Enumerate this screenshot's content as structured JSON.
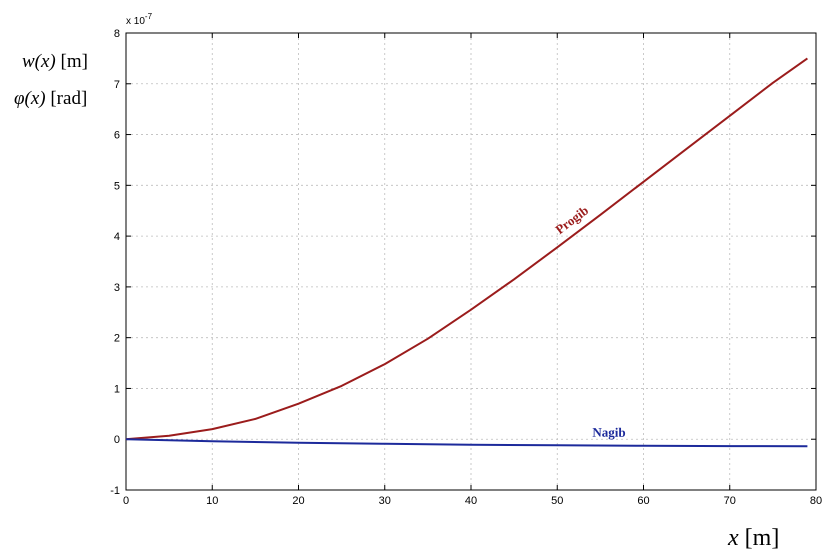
{
  "chart_data": {
    "type": "line",
    "title": "",
    "xlabel_var": "x",
    "xlabel_unit": "[m]",
    "ylabel_line1_var": "w(x)",
    "ylabel_line1_unit": "[m]",
    "ylabel_line2_var": "φ(x)",
    "ylabel_line2_unit": "[rad]",
    "y_multiplier": "x 10",
    "y_exponent": "-7",
    "xlim": [
      0,
      80
    ],
    "ylim": [
      -1,
      8
    ],
    "xticks": [
      0,
      10,
      20,
      30,
      40,
      50,
      60,
      70,
      80
    ],
    "yticks": [
      -1,
      0,
      1,
      2,
      3,
      4,
      5,
      6,
      7,
      8
    ],
    "grid": true,
    "series": [
      {
        "name": "Progib",
        "color": "#9b1c1c",
        "x": [
          0,
          5,
          10,
          15,
          20,
          25,
          30,
          35,
          40,
          45,
          50,
          55,
          60,
          65,
          70,
          75,
          79
        ],
        "y": [
          0,
          0.07,
          0.2,
          0.4,
          0.7,
          1.05,
          1.48,
          1.98,
          2.55,
          3.15,
          3.78,
          4.42,
          5.07,
          5.72,
          6.37,
          7.02,
          7.5
        ],
        "label_x": 52,
        "label_y": 4.25
      },
      {
        "name": "Nagib",
        "color": "#1c2a9b",
        "x": [
          0,
          5,
          10,
          20,
          30,
          40,
          50,
          60,
          70,
          79
        ],
        "y": [
          0,
          -0.02,
          -0.04,
          -0.07,
          -0.09,
          -0.11,
          -0.12,
          -0.13,
          -0.135,
          -0.14
        ],
        "label_x": 56,
        "label_y": 0.05
      }
    ]
  }
}
